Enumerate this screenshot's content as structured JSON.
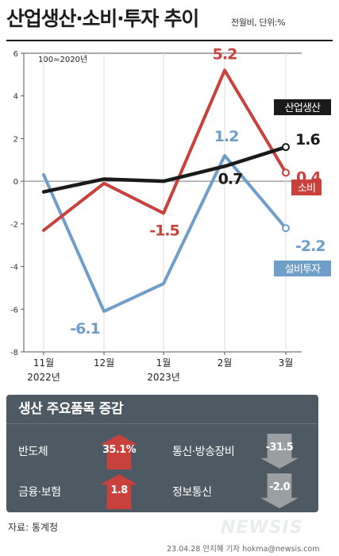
{
  "header": {
    "title": "산업생산·소비·투자 추이",
    "subtitle": "전월비, 단위:%"
  },
  "chart_data": {
    "type": "line",
    "annotation": "100=2020년",
    "categories": [
      "11월",
      "12월",
      "1월",
      "2월",
      "3월"
    ],
    "year_labels": [
      {
        "text": "2022년",
        "under": "11월"
      },
      {
        "text": "2023년",
        "under": "1월"
      }
    ],
    "ylim": [
      -8,
      6
    ],
    "yticks": [
      -8,
      -6,
      -4,
      -2,
      0,
      2,
      4,
      6
    ],
    "series": [
      {
        "name": "산업생산",
        "color": "#1a1a1a",
        "values": [
          -0.5,
          0.1,
          0.0,
          0.7,
          1.6
        ],
        "labels": [
          "",
          "",
          "",
          "0.7",
          "1.6"
        ]
      },
      {
        "name": "소비",
        "color": "#c9413c",
        "values": [
          -2.3,
          -0.1,
          -1.5,
          5.2,
          0.4
        ],
        "labels": [
          "",
          "",
          "-1.5",
          "5.2",
          "0.4"
        ]
      },
      {
        "name": "설비투자",
        "color": "#6f9fc9",
        "values": [
          0.3,
          -6.1,
          -4.8,
          1.2,
          -2.2
        ],
        "labels": [
          "",
          "-6.1",
          "",
          "1.2",
          "-2.2"
        ]
      }
    ]
  },
  "panel": {
    "title": "생산 주요품목 증감",
    "items": [
      {
        "label": "반도체",
        "value": "35.1%",
        "direction": "up"
      },
      {
        "label": "통신·방송장비",
        "value": "-31.5",
        "direction": "down"
      },
      {
        "label": "금융·보험",
        "value": "1.8",
        "direction": "up"
      },
      {
        "label": "정보통신",
        "value": "-2.0",
        "direction": "down"
      }
    ]
  },
  "footer": {
    "source": "자료: 통계청",
    "logo": "NEWSIS",
    "credit": "23.04.28 안지혜 기자 hokma@newsis.com"
  }
}
